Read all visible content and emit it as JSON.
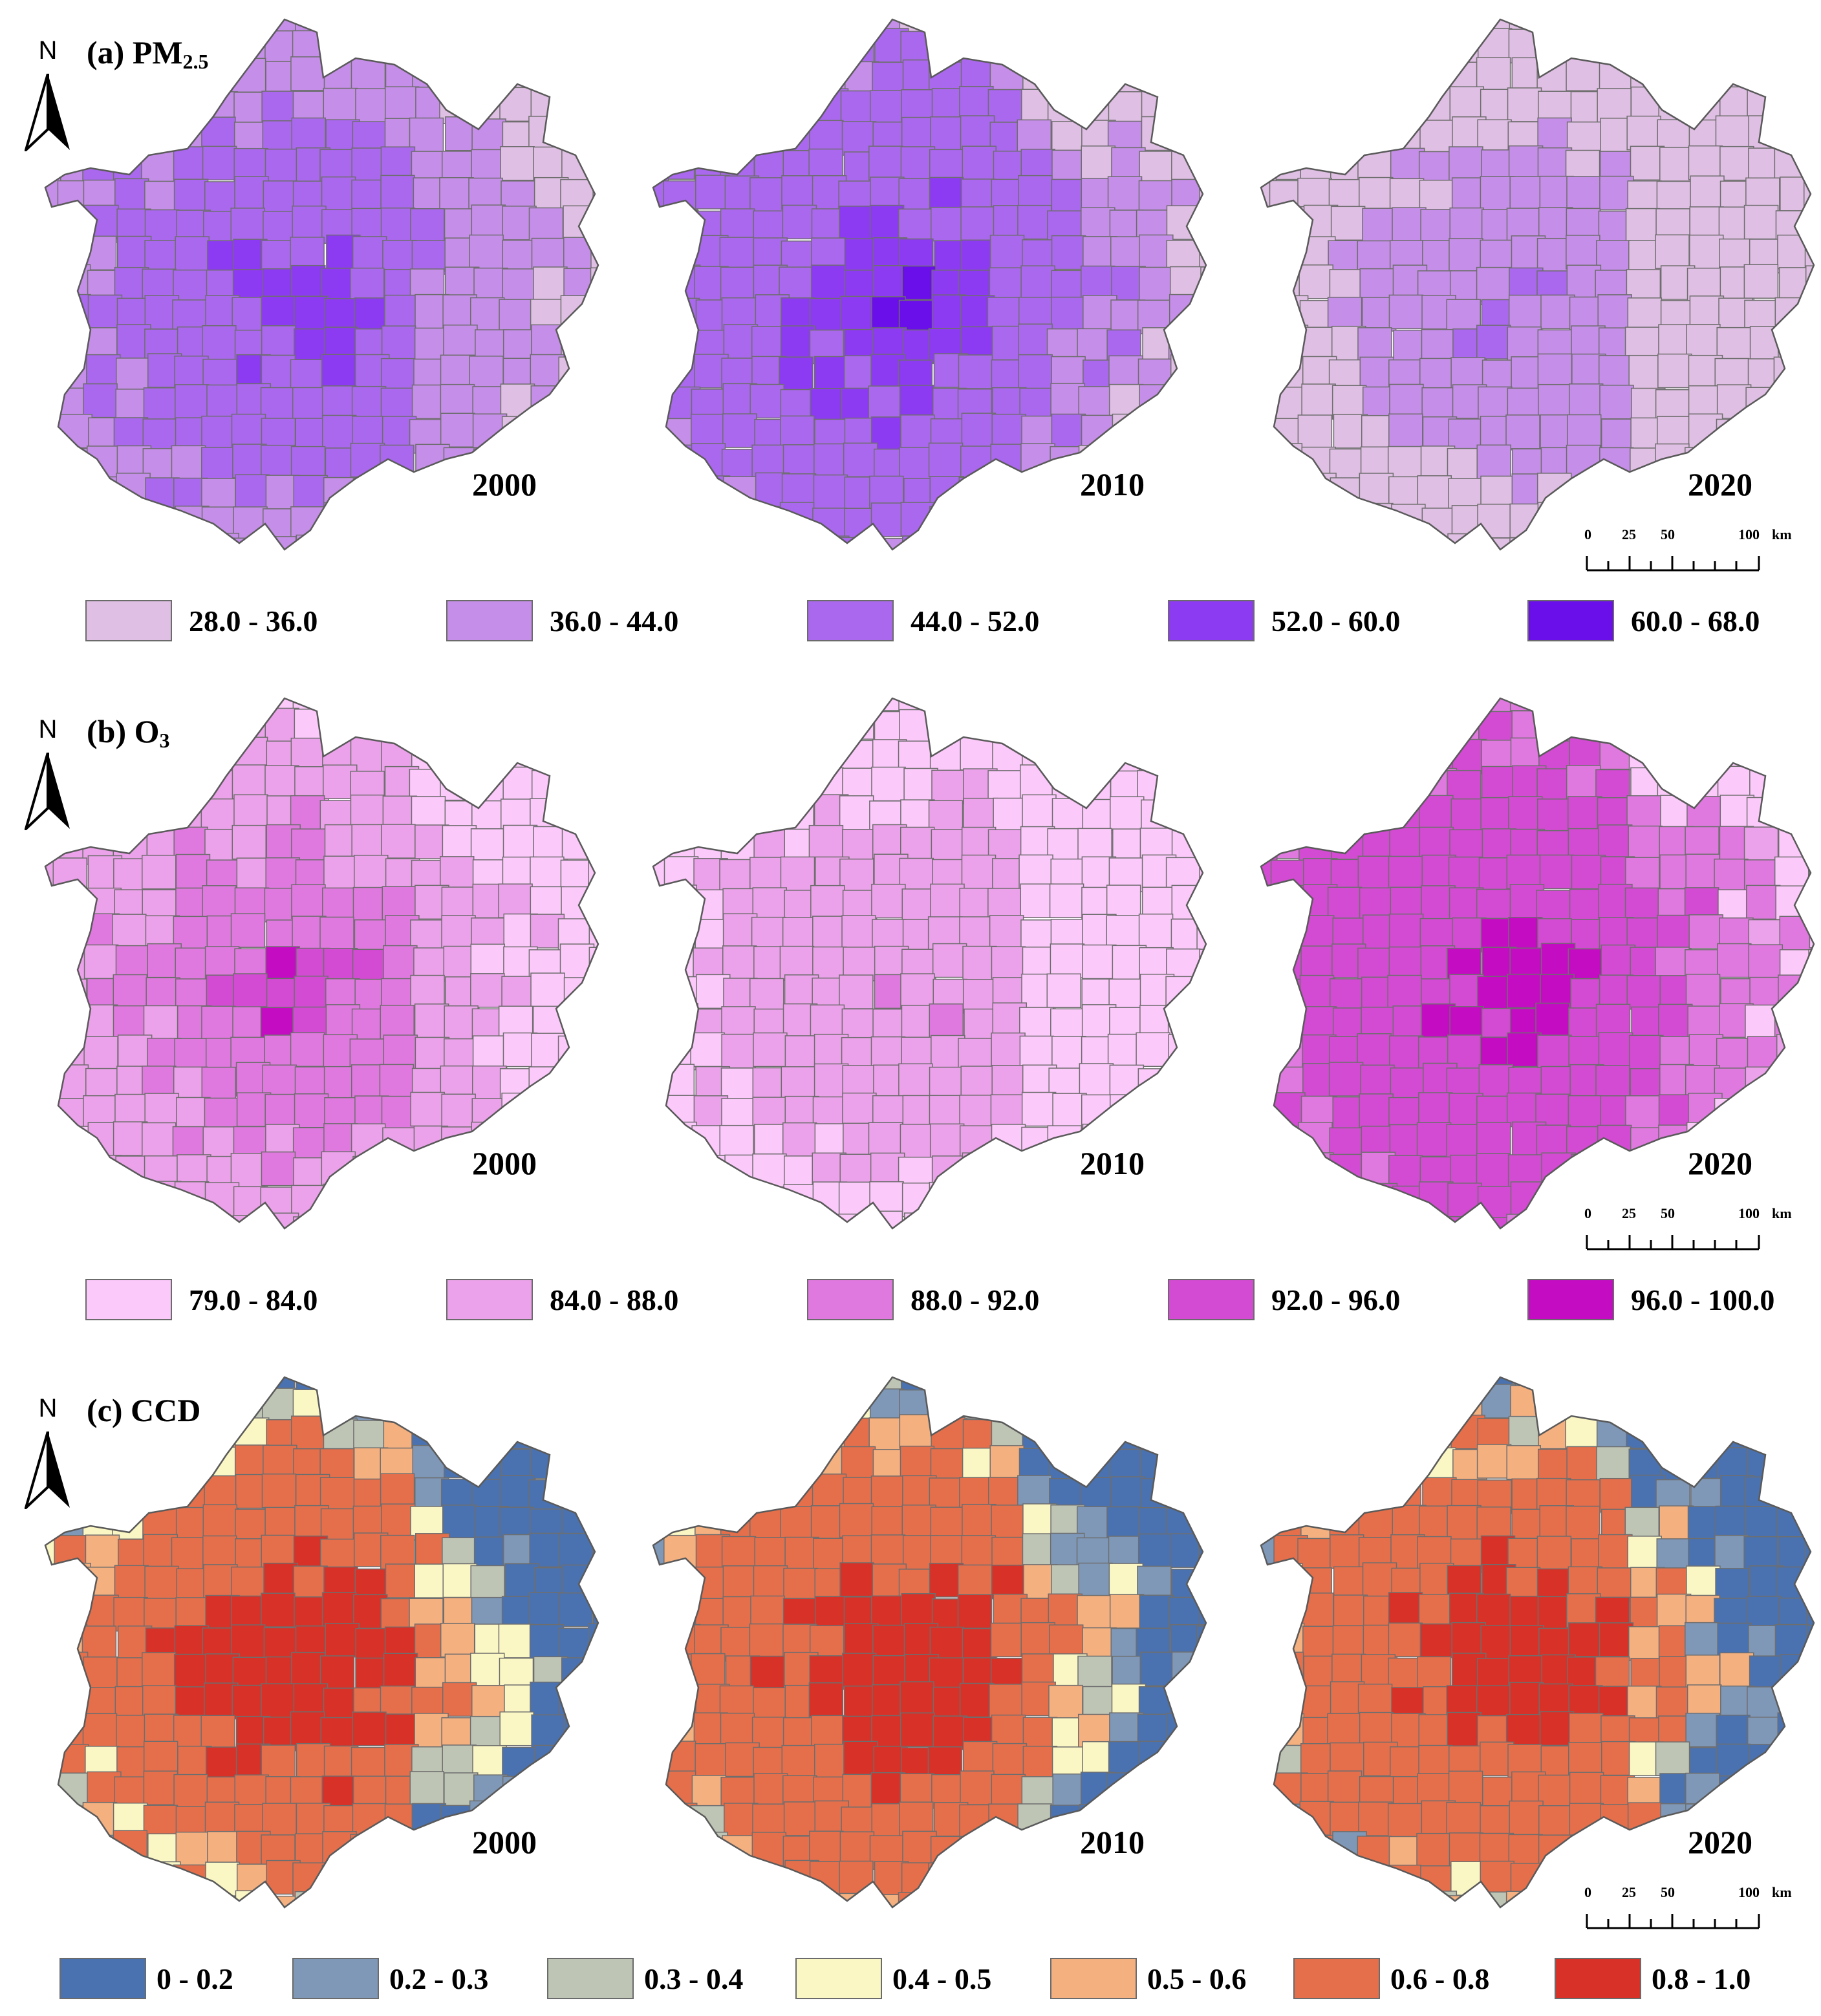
{
  "panels": [
    {
      "id": "pm25",
      "label": "(a)",
      "title": "PM",
      "title_sub": "2.5",
      "maps": [
        {
          "year": "2000",
          "class_weights": [
            0.0,
            0.4,
            0.42,
            0.18,
            0.0
          ],
          "core_class": 3
        },
        {
          "year": "2010",
          "class_weights": [
            0.0,
            0.18,
            0.52,
            0.28,
            0.02
          ],
          "core_class": 4
        },
        {
          "year": "2020",
          "class_weights": [
            0.48,
            0.46,
            0.06,
            0.0,
            0.0
          ],
          "core_class": 2
        }
      ],
      "legend": [
        {
          "label": "28.0 - 36.0",
          "color": "#dfbfe3"
        },
        {
          "label": "36.0 - 44.0",
          "color": "#c58ee8"
        },
        {
          "label": "44.0 - 52.0",
          "color": "#aa68ee"
        },
        {
          "label": "52.0 - 60.0",
          "color": "#8d3bf2"
        },
        {
          "label": "60.0 - 68.0",
          "color": "#6a0eea"
        }
      ]
    },
    {
      "id": "o3",
      "label": "(b)",
      "title": "O",
      "title_sub": "3",
      "maps": [
        {
          "year": "2000",
          "class_weights": [
            0.12,
            0.4,
            0.34,
            0.13,
            0.01
          ],
          "core_class": 4
        },
        {
          "year": "2010",
          "class_weights": [
            0.42,
            0.5,
            0.08,
            0.0,
            0.0
          ],
          "core_class": 2
        },
        {
          "year": "2020",
          "class_weights": [
            0.0,
            0.02,
            0.22,
            0.58,
            0.18
          ],
          "core_class": 4
        }
      ],
      "legend": [
        {
          "label": "79.0 - 84.0",
          "color": "#fcc9fb"
        },
        {
          "label": "84.0 - 88.0",
          "color": "#eca2ea"
        },
        {
          "label": "88.0 - 92.0",
          "color": "#e079df"
        },
        {
          "label": "92.0 - 96.0",
          "color": "#d34bd2"
        },
        {
          "label": "96.0 - 100.0",
          "color": "#c40dc2"
        }
      ]
    },
    {
      "id": "ccd",
      "label": "(c)",
      "title": "CCD",
      "title_sub": "",
      "maps": [
        {
          "year": "2000",
          "class_weights": [
            0.05,
            0.08,
            0.07,
            0.06,
            0.06,
            0.36,
            0.32
          ],
          "core_class": 6
        },
        {
          "year": "2010",
          "class_weights": [
            0.05,
            0.07,
            0.05,
            0.05,
            0.06,
            0.42,
            0.3
          ],
          "core_class": 6
        },
        {
          "year": "2020",
          "class_weights": [
            0.07,
            0.08,
            0.04,
            0.03,
            0.05,
            0.48,
            0.25
          ],
          "core_class": 6
        }
      ],
      "legend": [
        {
          "label": "0 - 0.2",
          "color": "#4a72b0"
        },
        {
          "label": "0.2 - 0.3",
          "color": "#7f98b8"
        },
        {
          "label": "0.3 - 0.4",
          "color": "#bec5b5"
        },
        {
          "label": "0.4 - 0.5",
          "color": "#fbf7c4"
        },
        {
          "label": "0.5 - 0.6",
          "color": "#f5b080"
        },
        {
          "label": "0.6 - 0.8",
          "color": "#e66f4b"
        },
        {
          "label": "0.8 - 1.0",
          "color": "#d83127"
        }
      ]
    }
  ],
  "north_label": "N",
  "scale_bar": {
    "labels": [
      "0",
      "25",
      "50",
      "100"
    ],
    "unit": "km"
  }
}
